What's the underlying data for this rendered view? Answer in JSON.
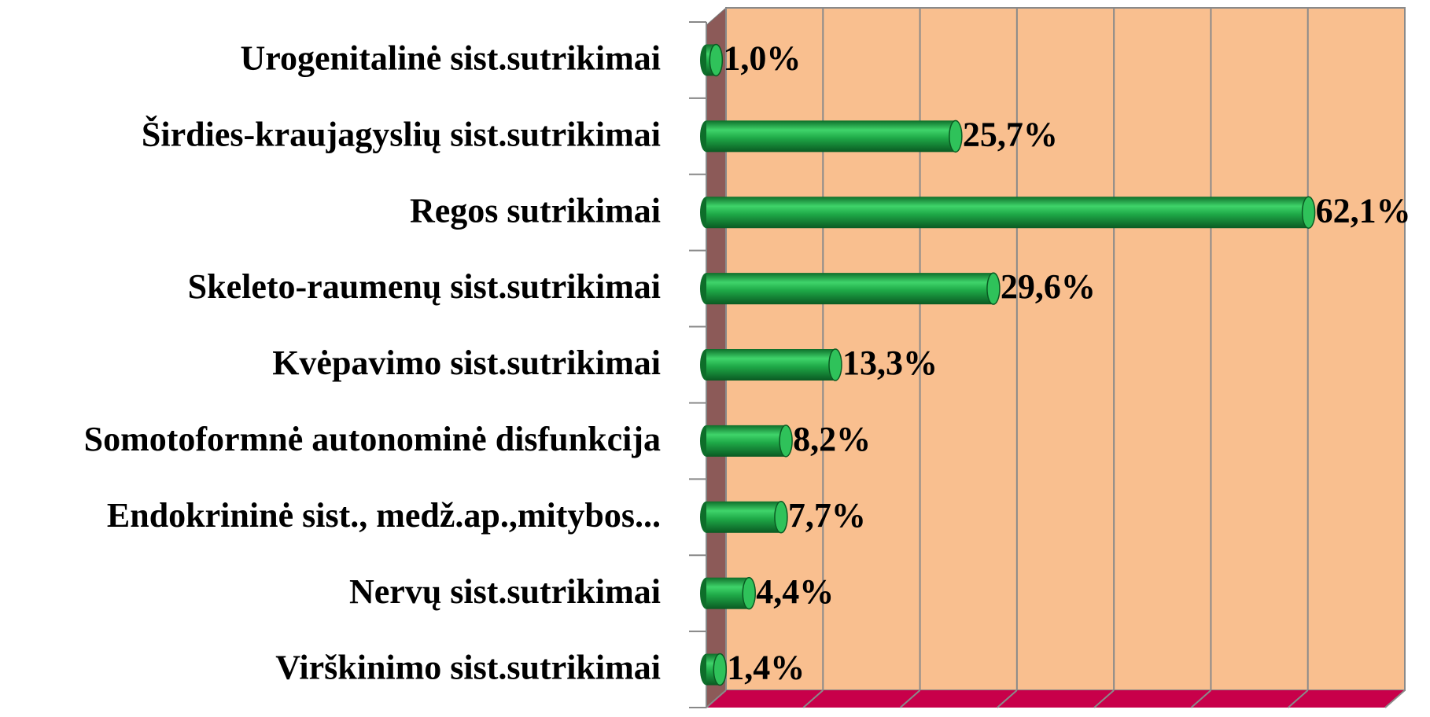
{
  "chart_data": {
    "type": "bar",
    "orientation": "horizontal",
    "categories": [
      "Urogenitalinė sist.sutrikimai",
      "Širdies-kraujagyslių sist.sutrikimai",
      "Regos sutrikimai",
      "Skeleto-raumenų sist.sutrikimai",
      "Kvėpavimo sist.sutrikimai",
      "Somotoformnė autonominė disfunkcija",
      "Endokrininė sist., medž.ap.,mitybos...",
      "Nervų sist.sutrikimai",
      "Virškinimo sist.sutrikimai"
    ],
    "values": [
      1.0,
      25.7,
      62.1,
      29.6,
      13.3,
      8.2,
      7.7,
      4.4,
      1.4
    ],
    "value_labels": [
      "1,0%",
      "25,7%",
      "62,1%",
      "29,6%",
      "13,3%",
      "8,2%",
      "7,7%",
      "4,4%",
      "1,4%"
    ],
    "color": "#1faa48",
    "xlim": [
      0,
      70
    ],
    "xticks": [
      0,
      10,
      20,
      30,
      40,
      50,
      60,
      70
    ],
    "grid": true
  }
}
